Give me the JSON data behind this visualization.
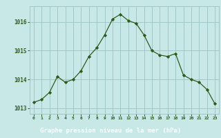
{
  "x": [
    0,
    1,
    2,
    3,
    4,
    5,
    6,
    7,
    8,
    9,
    10,
    11,
    12,
    13,
    14,
    15,
    16,
    17,
    18,
    19,
    20,
    21,
    22,
    23
  ],
  "y": [
    1013.2,
    1013.3,
    1013.55,
    1014.1,
    1013.9,
    1014.0,
    1014.3,
    1014.8,
    1015.1,
    1015.55,
    1016.1,
    1016.27,
    1016.05,
    1015.95,
    1015.55,
    1015.0,
    1014.85,
    1014.8,
    1014.9,
    1014.15,
    1014.0,
    1013.9,
    1013.65,
    1013.15
  ],
  "line_color": "#2d5a1b",
  "marker_color": "#2d5a1b",
  "plot_bg_color": "#c8e8e8",
  "fig_bg_color": "#c8e8e8",
  "grid_color": "#a0c8c8",
  "label_bg_color": "#2d6e2d",
  "xlabel": "Graphe pression niveau de la mer (hPa)",
  "xlabel_color": "#ffffff",
  "tick_color": "#2d5a1b",
  "ylim": [
    1012.8,
    1016.55
  ],
  "yticks": [
    1013,
    1014,
    1015,
    1016
  ],
  "xlim": [
    -0.5,
    23.5
  ]
}
